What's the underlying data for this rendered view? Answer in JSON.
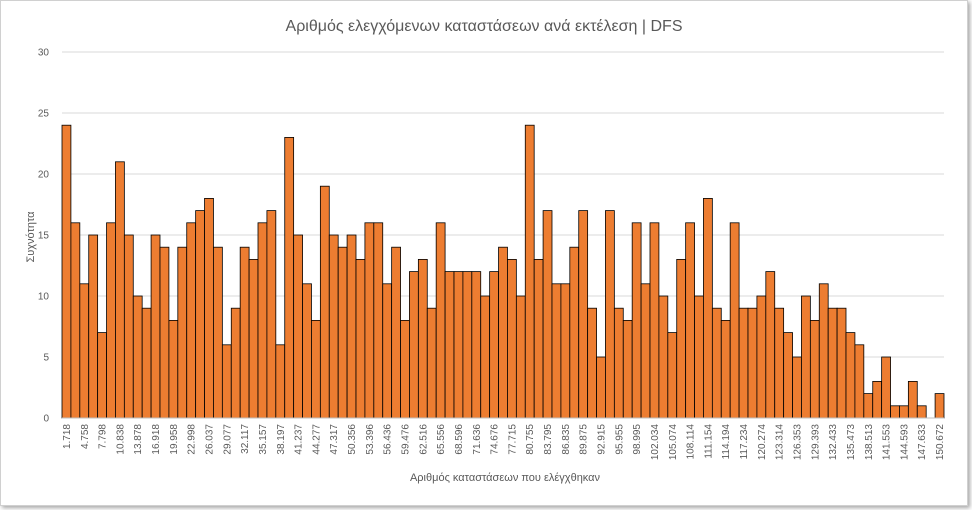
{
  "chart_data": {
    "type": "bar",
    "title": "Αριθμός ελεγχόμενων καταστάσεων ανά εκτέλεση | DFS",
    "xlabel": "Αριθμός καταστάσεων  που ελέγχθηκαν",
    "ylabel": "Συχνότητα",
    "ylim": [
      0,
      30
    ],
    "yticks": [
      0,
      5,
      10,
      15,
      20,
      25,
      30
    ],
    "grid": true,
    "legend": "none",
    "bar_color": "#ED7D31",
    "bar_edge_color": "#000000",
    "tick_labels": [
      "1.718",
      "4.758",
      "7.798",
      "10.838",
      "13.878",
      "16.918",
      "19.958",
      "22.998",
      "26.037",
      "29.077",
      "32.117",
      "35.157",
      "38.197",
      "41.237",
      "44.277",
      "47.317",
      "50.356",
      "53.396",
      "56.436",
      "59.476",
      "62.516",
      "65.556",
      "68.596",
      "71.636",
      "74.676",
      "77.715",
      "80.755",
      "83.795",
      "86.835",
      "89.875",
      "92.915",
      "95.955",
      "98.995",
      "102.034",
      "105.074",
      "108.114",
      "111.154",
      "114.194",
      "117.234",
      "120.274",
      "123.314",
      "126.353",
      "129.393",
      "132.433",
      "135.473",
      "138.513",
      "141.553",
      "144.593",
      "147.633",
      "150.672"
    ],
    "values": [
      24,
      16,
      11,
      15,
      7,
      16,
      21,
      15,
      10,
      9,
      15,
      14,
      8,
      14,
      16,
      17,
      18,
      14,
      6,
      9,
      14,
      13,
      16,
      17,
      6,
      23,
      15,
      11,
      8,
      19,
      15,
      14,
      15,
      13,
      16,
      16,
      11,
      14,
      8,
      12,
      13,
      9,
      16,
      12,
      12,
      12,
      12,
      10,
      12,
      14,
      13,
      10,
      24,
      13,
      17,
      11,
      11,
      14,
      17,
      9,
      5,
      17,
      9,
      8,
      16,
      11,
      16,
      10,
      7,
      13,
      16,
      10,
      18,
      9,
      8,
      16,
      9,
      9,
      10,
      12,
      9,
      7,
      5,
      10,
      8,
      11,
      9,
      9,
      7,
      6,
      2,
      3,
      5,
      1,
      1,
      3,
      1,
      0,
      2
    ]
  }
}
